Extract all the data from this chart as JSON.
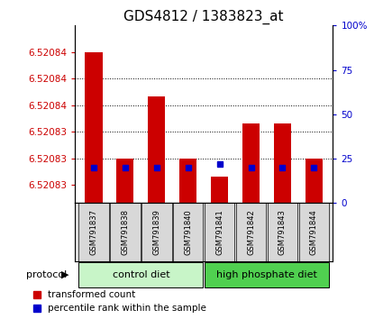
{
  "title": "GDS4812 / 1383823_at",
  "samples": [
    "GSM791837",
    "GSM791838",
    "GSM791839",
    "GSM791840",
    "GSM791841",
    "GSM791842",
    "GSM791843",
    "GSM791844"
  ],
  "transformed_counts": [
    6.520845,
    6.520833,
    6.52084,
    6.520833,
    6.520831,
    6.520837,
    6.520837,
    6.520833
  ],
  "percentile_ranks": [
    20,
    20,
    20,
    20,
    22,
    20,
    20,
    20
  ],
  "ylim_left": [
    6.520828,
    6.520848
  ],
  "ylim_right": [
    0,
    100
  ],
  "ytick_vals_left": [
    6.52083,
    6.520833,
    6.520836,
    6.520839,
    6.520842,
    6.520845
  ],
  "ytick_labels_left": [
    "6.52083",
    "6.52083",
    "6.52083",
    "6.52084",
    "6.52084",
    "6.52084"
  ],
  "ytick_vals_right": [
    0,
    25,
    50,
    75,
    100
  ],
  "ytick_labels_right": [
    "0",
    "25",
    "50",
    "75",
    "100%"
  ],
  "groups": [
    {
      "label": "control diet",
      "indices": [
        0,
        1,
        2,
        3
      ],
      "color": "#c8f5c8"
    },
    {
      "label": "high phosphate diet",
      "indices": [
        4,
        5,
        6,
        7
      ],
      "color": "#50d050"
    }
  ],
  "bar_color": "#cc0000",
  "dot_color": "#0000cc",
  "bar_width": 0.55,
  "bar_bottom": 6.520828,
  "background_color": "#ffffff",
  "title_fontsize": 11,
  "tick_fontsize": 7.5,
  "legend_fontsize": 7.5
}
